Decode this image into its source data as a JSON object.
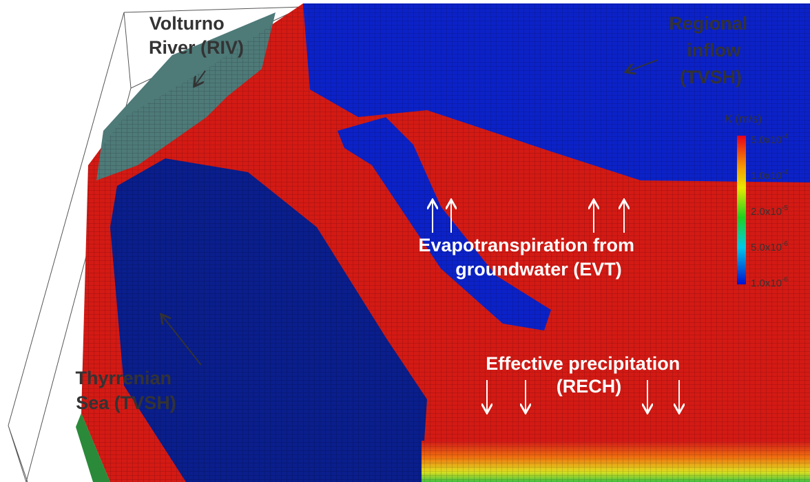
{
  "labels": {
    "volturno": [
      "Volturno",
      "River (RIV)"
    ],
    "regional": [
      "Regional",
      "inflow",
      "(TVSH)"
    ],
    "evt": [
      "Evapotranspiration from",
      "groundwater (EVT)"
    ],
    "sea": [
      "Thyrrenian",
      "Sea (TVSH)"
    ],
    "recharge": [
      "Effective precipitation",
      "(RECH)"
    ]
  },
  "colorbar": {
    "symbol": "K",
    "unit": "(m/s)",
    "ticks": [
      {
        "mantissa": "5.0x10",
        "exponent": "-4"
      },
      {
        "mantissa": "1.0x10",
        "exponent": "-4"
      },
      {
        "mantissa": "2.0x10",
        "exponent": "-5"
      },
      {
        "mantissa": "5.0x10",
        "exponent": "-6"
      },
      {
        "mantissa": "1.0x10",
        "exponent": "-6"
      }
    ]
  }
}
